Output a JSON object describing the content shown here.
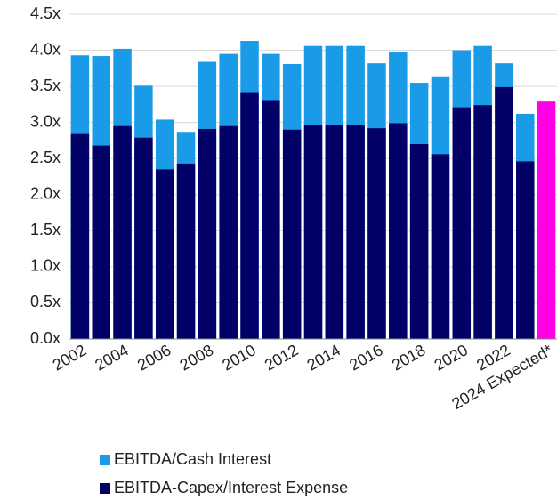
{
  "chart_data": {
    "type": "overlap_bar",
    "categories": [
      "2002",
      null,
      "2004",
      null,
      "2006",
      null,
      "2008",
      null,
      "2010",
      null,
      "2012",
      null,
      "2014",
      null,
      "2016",
      null,
      "2018",
      null,
      "2020",
      null,
      "2022",
      null,
      "2024 Expected*"
    ],
    "series": [
      {
        "name": "EBITDA/Cash Interest",
        "color": "#1a9be8",
        "point_colors": [
          "#1a9be8",
          "#1a9be8",
          "#1a9be8",
          "#1a9be8",
          "#1a9be8",
          "#1a9be8",
          "#1a9be8",
          "#1a9be8",
          "#1a9be8",
          "#1a9be8",
          "#1a9be8",
          "#1a9be8",
          "#1a9be8",
          "#1a9be8",
          "#1a9be8",
          "#1a9be8",
          "#1a9be8",
          "#1a9be8",
          "#1a9be8",
          "#1a9be8",
          "#1a9be8",
          "#1a9be8",
          "#ff00e6"
        ],
        "values": [
          3.93,
          3.92,
          4.02,
          3.51,
          3.04,
          2.87,
          3.84,
          3.95,
          4.13,
          3.95,
          3.81,
          4.06,
          4.06,
          4.06,
          3.82,
          3.97,
          3.55,
          3.64,
          4.0,
          4.06,
          3.82,
          3.12,
          3.29
        ]
      },
      {
        "name": "EBITDA-Capex/Interest Expense",
        "color": "#000066",
        "values": [
          2.84,
          2.68,
          2.95,
          2.79,
          2.35,
          2.43,
          2.91,
          2.95,
          3.42,
          3.31,
          2.9,
          2.97,
          2.97,
          2.97,
          2.92,
          2.99,
          2.7,
          2.56,
          3.21,
          3.24,
          3.49,
          2.46,
          null
        ]
      }
    ],
    "ylim": [
      0,
      4.5
    ],
    "yticks": [
      {
        "value": 0,
        "label": "0.0x"
      },
      {
        "value": 0.5,
        "label": "0.5x"
      },
      {
        "value": 1,
        "label": "1.0x"
      },
      {
        "value": 1.5,
        "label": "1.5x"
      },
      {
        "value": 2,
        "label": "2.0x"
      },
      {
        "value": 2.5,
        "label": "2.5x"
      },
      {
        "value": 3,
        "label": "3.0x"
      },
      {
        "value": 3.5,
        "label": "3.5x"
      },
      {
        "value": 4,
        "label": "4.0x"
      },
      {
        "value": 4.5,
        "label": "4.5x"
      }
    ],
    "grid": true
  }
}
